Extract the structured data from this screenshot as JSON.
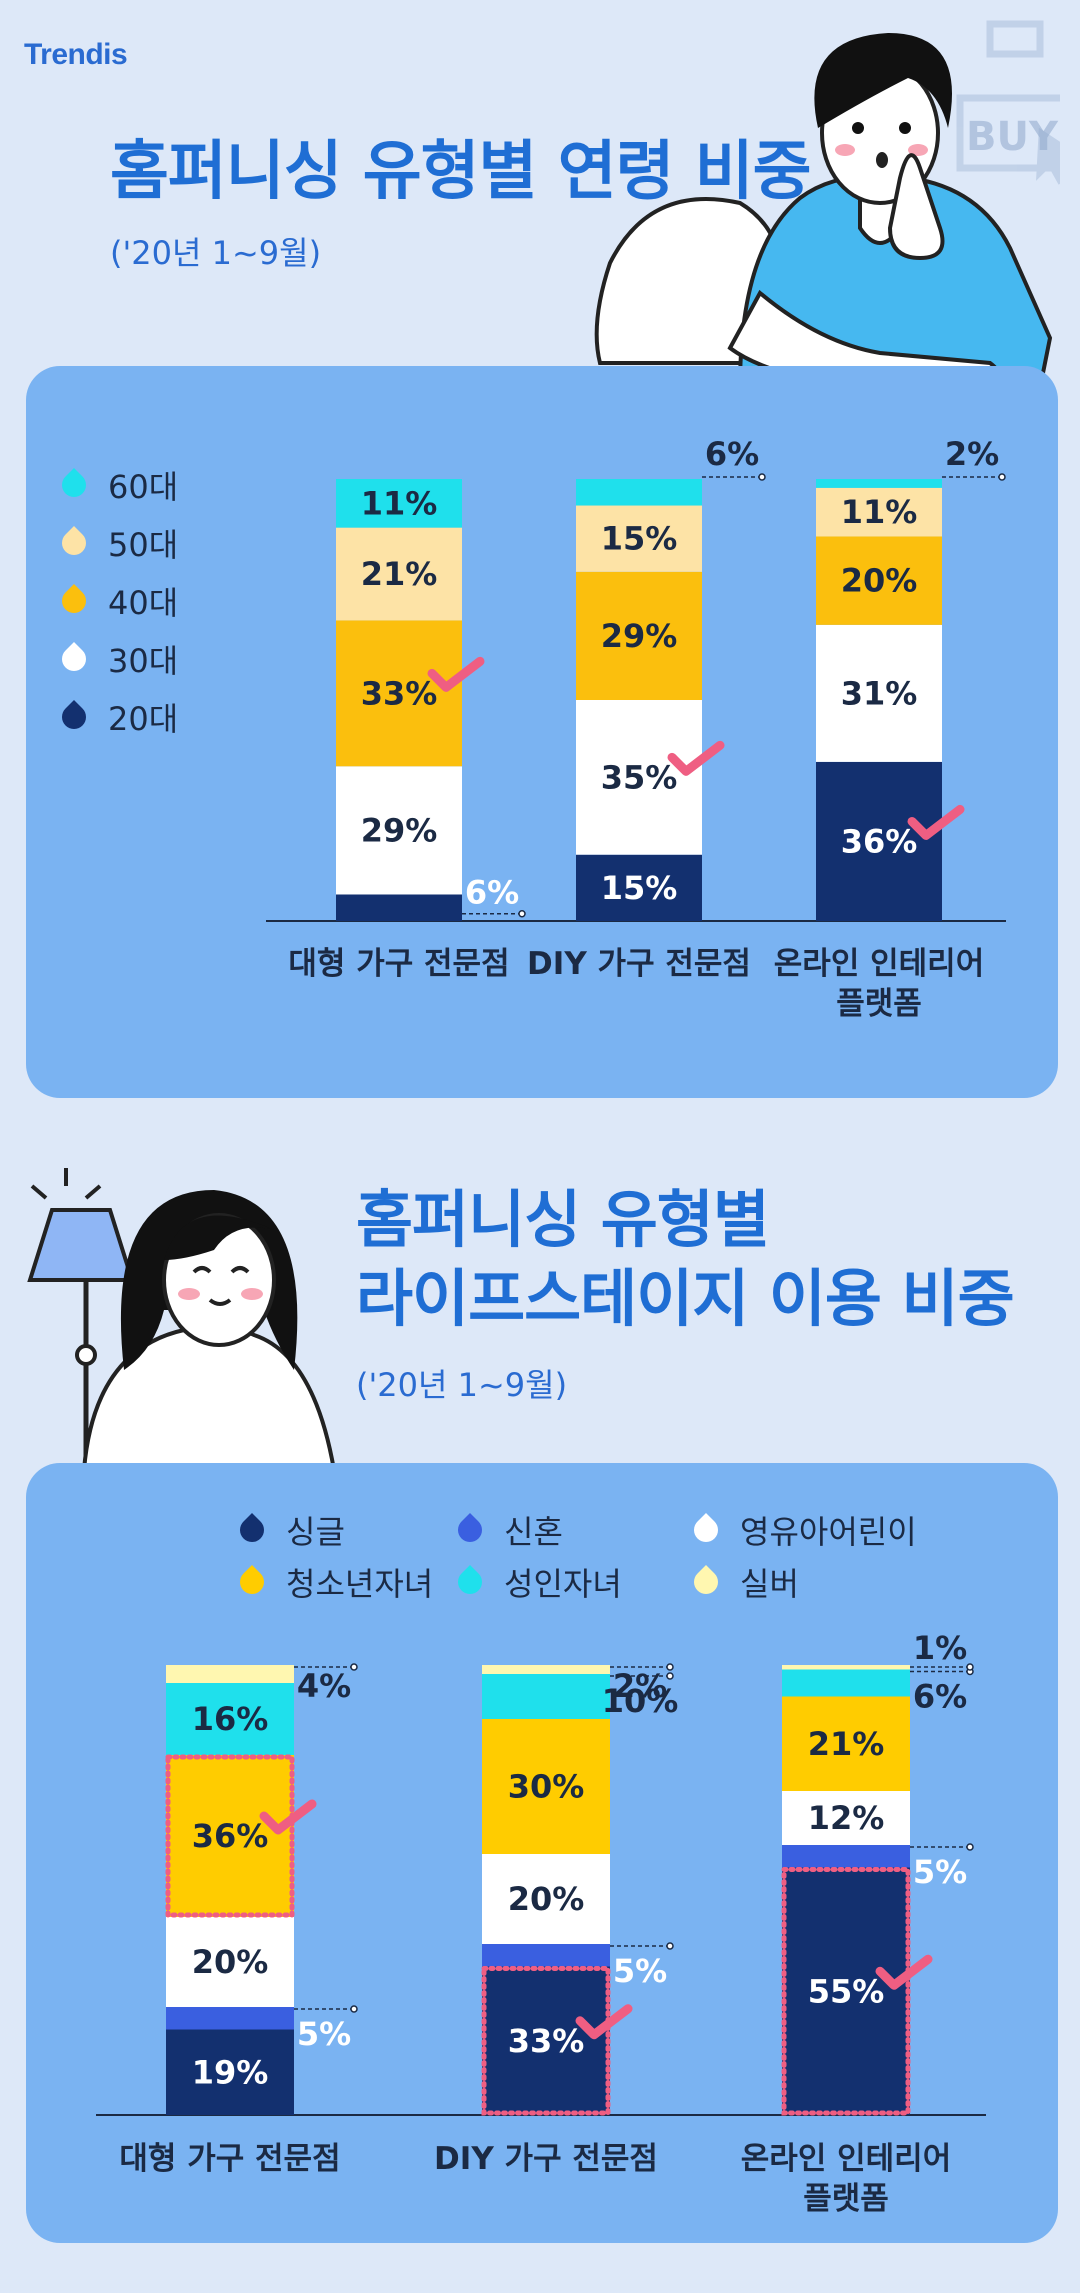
{
  "logo": "Trendis",
  "section1": {
    "title": "홈퍼니싱 유형별 연령 비중",
    "period": "('20년 1~9월)"
  },
  "section2": {
    "title_line1": "홈퍼니싱 유형별",
    "title_line2": "라이프스테이지 이용 비중",
    "period": "('20년 1~9월)"
  },
  "illustration_text": "BUY",
  "colors": {
    "accent_check": "#ef5e82",
    "navy": "#13306f",
    "white": "#ffffff",
    "gold": "#fbbf0d",
    "yellow": "#ffcc00",
    "peach": "#fde3a6",
    "cyan": "#1fe0ec",
    "blue": "#3a5fe0",
    "cream": "#fff7b0"
  },
  "chart_data": [
    {
      "type": "bar",
      "stacked": true,
      "categories": [
        "대형 가구 전문점",
        "DIY 가구 전문점",
        "온라인 인테리어 플랫폼"
      ],
      "category_lines": [
        [
          "대형 가구 전문점"
        ],
        [
          "DIY 가구 전문점"
        ],
        [
          "온라인 인테리어",
          "플랫폼"
        ]
      ],
      "series": [
        {
          "name": "20대",
          "color": "#13306f",
          "values": [
            6,
            15,
            36
          ]
        },
        {
          "name": "30대",
          "color": "#ffffff",
          "values": [
            29,
            35,
            31
          ]
        },
        {
          "name": "40대",
          "color": "#fbbf0d",
          "values": [
            33,
            29,
            20
          ]
        },
        {
          "name": "50대",
          "color": "#fde3a6",
          "values": [
            21,
            15,
            11
          ]
        },
        {
          "name": "60대",
          "color": "#1fe0ec",
          "values": [
            11,
            6,
            2
          ]
        }
      ],
      "legend_order": [
        "60대",
        "50대",
        "40대",
        "30대",
        "20대"
      ],
      "highlight": [
        {
          "category": 0,
          "series": "40대"
        },
        {
          "category": 1,
          "series": "30대"
        },
        {
          "category": 2,
          "series": "20대"
        }
      ],
      "ylim": [
        0,
        100
      ],
      "unit": "%"
    },
    {
      "type": "bar",
      "stacked": true,
      "categories": [
        "대형 가구 전문점",
        "DIY 가구 전문점",
        "온라인 인테리어 플랫폼"
      ],
      "category_lines": [
        [
          "대형 가구 전문점"
        ],
        [
          "DIY 가구 전문점"
        ],
        [
          "온라인 인테리어",
          "플랫폼"
        ]
      ],
      "series": [
        {
          "name": "싱글",
          "color": "#13306f",
          "values": [
            19,
            33,
            55
          ]
        },
        {
          "name": "신혼",
          "color": "#3a5fe0",
          "values": [
            5,
            5,
            5
          ]
        },
        {
          "name": "영유아어린이",
          "color": "#ffffff",
          "values": [
            20,
            20,
            12
          ]
        },
        {
          "name": "청소년자녀",
          "color": "#ffcc00",
          "values": [
            36,
            30,
            21
          ]
        },
        {
          "name": "성인자녀",
          "color": "#1fe0ec",
          "values": [
            16,
            10,
            6
          ]
        },
        {
          "name": "실버",
          "color": "#fff7b0",
          "values": [
            4,
            2,
            1
          ]
        }
      ],
      "legend_order": [
        "싱글",
        "신혼",
        "영유아어린이",
        "청소년자녀",
        "성인자녀",
        "실버"
      ],
      "highlight": [
        {
          "category": 0,
          "series": "청소년자녀"
        },
        {
          "category": 1,
          "series": "싱글"
        },
        {
          "category": 2,
          "series": "싱글"
        }
      ],
      "ylim": [
        0,
        100
      ],
      "unit": "%"
    }
  ]
}
